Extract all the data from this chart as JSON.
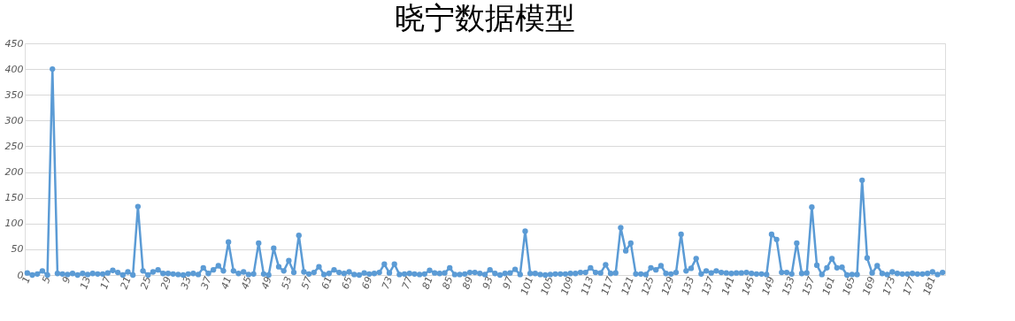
{
  "chart_data": {
    "type": "line",
    "title": "晓宁数据模型",
    "categories": [
      "1",
      null,
      null,
      null,
      "5",
      null,
      null,
      null,
      "9",
      null,
      null,
      null,
      "13",
      null,
      null,
      null,
      "17",
      null,
      null,
      null,
      "21",
      null,
      null,
      null,
      "25",
      null,
      null,
      null,
      "29",
      null,
      null,
      null,
      "33",
      null,
      null,
      null,
      "37",
      null,
      null,
      null,
      "41",
      null,
      null,
      null,
      "45",
      null,
      null,
      null,
      "49",
      null,
      null,
      null,
      "53",
      null,
      null,
      null,
      "57",
      null,
      null,
      null,
      "61",
      null,
      null,
      null,
      "65",
      null,
      null,
      null,
      "69",
      null,
      null,
      null,
      "73",
      null,
      null,
      null,
      "77",
      null,
      null,
      null,
      "81",
      null,
      null,
      null,
      "85",
      null,
      null,
      null,
      "89",
      null,
      null,
      null,
      "93",
      null,
      null,
      null,
      "97",
      null,
      null,
      null,
      "101",
      null,
      null,
      null,
      "105",
      null,
      null,
      null,
      "109",
      null,
      null,
      null,
      "113",
      null,
      null,
      null,
      "117",
      null,
      null,
      null,
      "121",
      null,
      null,
      null,
      "125",
      null,
      null,
      null,
      "129",
      null,
      null,
      null,
      "133",
      null,
      null,
      null,
      "137",
      null,
      null,
      null,
      "141",
      null,
      null,
      null,
      "145",
      null,
      null,
      null,
      "149",
      null,
      null,
      null,
      "153",
      null,
      null,
      null,
      "157",
      null,
      null,
      null,
      "161",
      null,
      null,
      null,
      "165",
      null,
      null,
      null,
      "169",
      null,
      null,
      null,
      "173",
      null,
      null,
      null,
      "177",
      null,
      null,
      null,
      "181",
      null,
      null
    ],
    "series": [
      {
        "color": "#5b9bd5",
        "values": [
          4,
          0,
          2,
          8,
          0,
          400,
          3,
          2,
          1,
          3,
          0,
          3,
          1,
          3,
          2,
          2,
          4,
          9,
          5,
          0,
          6,
          0,
          133,
          8,
          0,
          6,
          10,
          3,
          3,
          2,
          1,
          0,
          2,
          3,
          1,
          14,
          3,
          10,
          18,
          8,
          64,
          8,
          3,
          6,
          1,
          2,
          62,
          2,
          0,
          52,
          16,
          8,
          28,
          5,
          77,
          6,
          2,
          5,
          16,
          1,
          3,
          10,
          5,
          3,
          6,
          1,
          0,
          4,
          2,
          3,
          5,
          21,
          4,
          21,
          1,
          2,
          3,
          2,
          1,
          2,
          9,
          4,
          3,
          4,
          14,
          1,
          1,
          2,
          5,
          5,
          3,
          1,
          10,
          3,
          0,
          3,
          4,
          11,
          1,
          85,
          3,
          3,
          1,
          0,
          1,
          2,
          2,
          2,
          3,
          3,
          5,
          5,
          14,
          5,
          4,
          20,
          3,
          4,
          92,
          47,
          62,
          2,
          2,
          1,
          14,
          10,
          18,
          3,
          2,
          5,
          79,
          8,
          13,
          32,
          2,
          8,
          4,
          8,
          5,
          4,
          3,
          4,
          4,
          5,
          3,
          2,
          2,
          1,
          79,
          69,
          5,
          5,
          2,
          62,
          3,
          4,
          132,
          19,
          1,
          14,
          32,
          14,
          15,
          0,
          1,
          1,
          184,
          33,
          4,
          18,
          3,
          1,
          6,
          3,
          2,
          2,
          3,
          2,
          2,
          3,
          6,
          1,
          5
        ]
      }
    ],
    "ylim": [
      0,
      450
    ],
    "yticks": [
      0,
      50,
      100,
      150,
      200,
      250,
      300,
      350,
      400,
      450
    ],
    "grid": "y",
    "marker": "circle",
    "line_style": "solid"
  }
}
